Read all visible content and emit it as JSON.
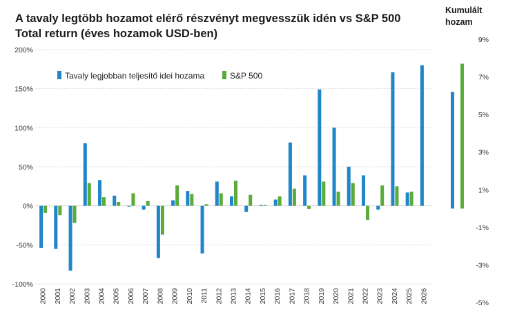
{
  "title": "A tavaly legtöbb hozamot elérő részvényt megvesszük idén vs S&P 500 Total return (éves hozamok USD-ben)",
  "side_title": "Kumulált hozam",
  "colors": {
    "series1": "#1f86c8",
    "series2": "#5aaa3c",
    "grid": "#d9d9d9",
    "axis": "#bfbfbf"
  },
  "chart_data": [
    {
      "type": "bar",
      "categories": [
        "2000",
        "2001",
        "2002",
        "2003",
        "2004",
        "2005",
        "2006",
        "2007",
        "2008",
        "2009",
        "2010",
        "2011",
        "2012",
        "2013",
        "2014",
        "2015",
        "2016",
        "2017",
        "2018",
        "2019",
        "2020",
        "2021",
        "2022",
        "2023",
        "2024",
        "2025",
        "2026"
      ],
      "series": [
        {
          "name": "Tavaly legjobban teljesítő idei hozama",
          "values": [
            -54,
            -55,
            -83,
            80,
            33,
            13,
            -1,
            -5,
            -67,
            7,
            19,
            -61,
            31,
            12,
            -8,
            1,
            8,
            81,
            39,
            149,
            100,
            50,
            39,
            -5,
            171,
            17,
            180
          ]
        },
        {
          "name": "S&P 500",
          "values": [
            -9,
            -12,
            -22,
            29,
            11,
            5,
            16,
            6,
            -37,
            26,
            15,
            2,
            16,
            32,
            14,
            1,
            12,
            22,
            -4,
            31,
            18,
            29,
            -18,
            26,
            25,
            18,
            null
          ]
        }
      ],
      "ylim": [
        -100,
        200
      ],
      "yticks": [
        "-100%",
        "-50%",
        "0%",
        "50%",
        "100%",
        "150%",
        "200%"
      ],
      "grid": true,
      "legend": "top-left"
    },
    {
      "type": "bar",
      "categories": [
        "Tavaly legjobban teljesítő idei hozama",
        "S&P 500"
      ],
      "values": [
        6.2,
        7.7
      ],
      "ylim": [
        -5,
        9
      ],
      "yticks": [
        "-5%",
        "-3%",
        "-1%",
        "1%",
        "3%",
        "5%",
        "7%",
        "9%"
      ],
      "axis_side": "right"
    }
  ]
}
